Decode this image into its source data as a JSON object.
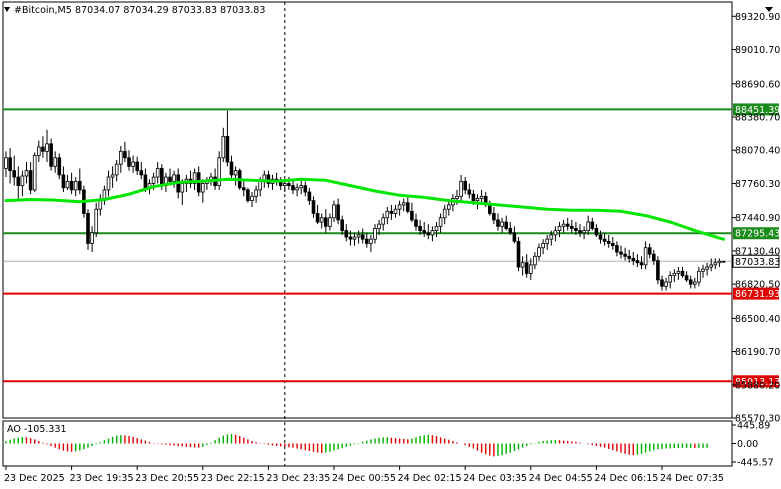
{
  "chart_data": {
    "type": "candlestick",
    "header": {
      "symbol_timeframe": "#Bitcoin,M5",
      "ohlc": "87034.07 87034.29 87033.83 87033.83"
    },
    "y_axis": {
      "min": 85570.3,
      "max": 89454.5,
      "tick_labels": [
        "89320.90",
        "89010.70",
        "88690.60",
        "88380.70",
        "88070.40",
        "87760.30",
        "87440.90",
        "87130.40",
        "86820.50",
        "86500.40",
        "86190.70",
        "85880.20",
        "85570.30"
      ],
      "tick_values": [
        89320.9,
        89010.7,
        88690.6,
        88380.7,
        88070.4,
        87760.3,
        87440.9,
        87130.4,
        86820.5,
        86500.4,
        86190.7,
        85880.2,
        85570.3
      ]
    },
    "x_axis": {
      "tick_labels": [
        "23 Dec 2025",
        "23 Dec 19:35",
        "23 Dec 20:55",
        "23 Dec 22:15",
        "23 Dec 23:35",
        "24 Dec 00:55",
        "24 Dec 02:15",
        "24 Dec 03:35",
        "24 Dec 04:55",
        "24 Dec 06:15",
        "24 Dec 07:35"
      ],
      "tick_bar_index": [
        0,
        16,
        32,
        48,
        64,
        80,
        96,
        112,
        128,
        144,
        160
      ]
    },
    "bar_count": 176,
    "session_divider_bar_index": 68,
    "ohlc": [
      [
        87900,
        88060,
        87820,
        88000
      ],
      [
        88000,
        88090,
        87760,
        87880
      ],
      [
        87880,
        88020,
        87740,
        87820
      ],
      [
        87820,
        87920,
        87620,
        87740
      ],
      [
        87740,
        87880,
        87640,
        87830
      ],
      [
        87830,
        87960,
        87760,
        87880
      ],
      [
        87880,
        87960,
        87660,
        87700
      ],
      [
        87700,
        88050,
        87680,
        88020
      ],
      [
        88020,
        88160,
        87960,
        88100
      ],
      [
        88100,
        88200,
        88000,
        88060
      ],
      [
        88060,
        88260,
        87960,
        88130
      ],
      [
        88130,
        88180,
        87880,
        87920
      ],
      [
        87920,
        88060,
        87860,
        88000
      ],
      [
        88000,
        88040,
        87800,
        87840
      ],
      [
        87840,
        87920,
        87680,
        87720
      ],
      [
        87720,
        87840,
        87700,
        87780
      ],
      [
        87780,
        87860,
        87660,
        87700
      ],
      [
        87700,
        87820,
        87640,
        87780
      ],
      [
        87780,
        87900,
        87660,
        87700
      ],
      [
        87700,
        87740,
        87440,
        87480
      ],
      [
        87480,
        87520,
        87140,
        87200
      ],
      [
        87200,
        87360,
        87120,
        87300
      ],
      [
        87300,
        87580,
        87260,
        87520
      ],
      [
        87520,
        87660,
        87460,
        87600
      ],
      [
        87600,
        87740,
        87560,
        87700
      ],
      [
        87700,
        87880,
        87640,
        87820
      ],
      [
        87820,
        87920,
        87720,
        87840
      ],
      [
        87840,
        87980,
        87780,
        87940
      ],
      [
        87940,
        88110,
        87860,
        88060
      ],
      [
        88060,
        88150,
        87960,
        88000
      ],
      [
        88000,
        88070,
        87880,
        87920
      ],
      [
        87920,
        88020,
        87860,
        87960
      ],
      [
        87960,
        88010,
        87840,
        87880
      ],
      [
        87880,
        87960,
        87800,
        87840
      ],
      [
        87840,
        87900,
        87680,
        87720
      ],
      [
        87720,
        87800,
        87660,
        87760
      ],
      [
        87760,
        87860,
        87700,
        87820
      ],
      [
        87820,
        87960,
        87760,
        87900
      ],
      [
        87900,
        87940,
        87700,
        87740
      ],
      [
        87740,
        87860,
        87680,
        87820
      ],
      [
        87820,
        87900,
        87740,
        87780
      ],
      [
        87780,
        87880,
        87720,
        87840
      ],
      [
        87840,
        87900,
        87620,
        87680
      ],
      [
        87680,
        87800,
        87560,
        87760
      ],
      [
        87760,
        87840,
        87680,
        87800
      ],
      [
        87800,
        87880,
        87720,
        87760
      ],
      [
        87760,
        87900,
        87700,
        87860
      ],
      [
        87860,
        87920,
        87640,
        87680
      ],
      [
        87680,
        87800,
        87580,
        87760
      ],
      [
        87760,
        87820,
        87700,
        87780
      ],
      [
        87780,
        87860,
        87740,
        87820
      ],
      [
        87820,
        87900,
        87700,
        87740
      ],
      [
        87740,
        88060,
        87700,
        88000
      ],
      [
        88000,
        88280,
        87960,
        88200
      ],
      [
        88200,
        88440,
        87920,
        87960
      ],
      [
        87960,
        88020,
        87800,
        87840
      ],
      [
        87840,
        87920,
        87740,
        87880
      ],
      [
        87880,
        87900,
        87700,
        87720
      ],
      [
        87720,
        87780,
        87640,
        87700
      ],
      [
        87700,
        87720,
        87580,
        87600
      ],
      [
        87600,
        87680,
        87540,
        87640
      ],
      [
        87640,
        87740,
        87580,
        87700
      ],
      [
        87700,
        87820,
        87640,
        87780
      ],
      [
        87780,
        87880,
        87720,
        87840
      ],
      [
        87840,
        87880,
        87720,
        87760
      ],
      [
        87760,
        87840,
        87700,
        87800
      ],
      [
        87800,
        87860,
        87740,
        87780
      ],
      [
        87780,
        87820,
        87700,
        87740
      ],
      [
        87740,
        87800,
        87680,
        87760
      ],
      [
        87760,
        87820,
        87700,
        87740
      ],
      [
        87740,
        87790,
        87660,
        87700
      ],
      [
        87700,
        87760,
        87640,
        87720
      ],
      [
        87720,
        87800,
        87660,
        87740
      ],
      [
        87740,
        87780,
        87640,
        87680
      ],
      [
        87680,
        87720,
        87560,
        87600
      ],
      [
        87600,
        87640,
        87440,
        87480
      ],
      [
        87480,
        87560,
        87380,
        87400
      ],
      [
        87400,
        87480,
        87340,
        87440
      ],
      [
        87440,
        87520,
        87300,
        87360
      ],
      [
        87360,
        87480,
        87320,
        87440
      ],
      [
        87440,
        87600,
        87400,
        87560
      ],
      [
        87560,
        87620,
        87380,
        87420
      ],
      [
        87420,
        87460,
        87280,
        87320
      ],
      [
        87320,
        87380,
        87220,
        87260
      ],
      [
        87260,
        87320,
        87180,
        87240
      ],
      [
        87240,
        87300,
        87180,
        87260
      ],
      [
        87260,
        87320,
        87200,
        87280
      ],
      [
        87280,
        87340,
        87200,
        87240
      ],
      [
        87240,
        87300,
        87160,
        87200
      ],
      [
        87200,
        87280,
        87120,
        87240
      ],
      [
        87240,
        87380,
        87200,
        87340
      ],
      [
        87340,
        87420,
        87280,
        87380
      ],
      [
        87380,
        87480,
        87320,
        87440
      ],
      [
        87440,
        87540,
        87380,
        87500
      ],
      [
        87500,
        87560,
        87420,
        87480
      ],
      [
        87480,
        87560,
        87440,
        87520
      ],
      [
        87520,
        87600,
        87460,
        87560
      ],
      [
        87560,
        87620,
        87500,
        87580
      ],
      [
        87580,
        87640,
        87480,
        87500
      ],
      [
        87500,
        87580,
        87400,
        87420
      ],
      [
        87420,
        87480,
        87320,
        87360
      ],
      [
        87360,
        87420,
        87280,
        87320
      ],
      [
        87320,
        87400,
        87260,
        87300
      ],
      [
        87300,
        87380,
        87240,
        87280
      ],
      [
        87280,
        87360,
        87220,
        87320
      ],
      [
        87320,
        87400,
        87260,
        87360
      ],
      [
        87360,
        87480,
        87300,
        87440
      ],
      [
        87440,
        87560,
        87380,
        87520
      ],
      [
        87520,
        87600,
        87460,
        87560
      ],
      [
        87560,
        87660,
        87500,
        87620
      ],
      [
        87620,
        87700,
        87560,
        87640
      ],
      [
        87640,
        87840,
        87600,
        87780
      ],
      [
        87780,
        87820,
        87660,
        87700
      ],
      [
        87700,
        87760,
        87620,
        87660
      ],
      [
        87660,
        87700,
        87560,
        87600
      ],
      [
        87600,
        87660,
        87520,
        87620
      ],
      [
        87620,
        87700,
        87560,
        87640
      ],
      [
        87640,
        87680,
        87540,
        87560
      ],
      [
        87560,
        87600,
        87460,
        87480
      ],
      [
        87480,
        87540,
        87380,
        87420
      ],
      [
        87420,
        87480,
        87320,
        87360
      ],
      [
        87360,
        87440,
        87300,
        87400
      ],
      [
        87400,
        87460,
        87320,
        87340
      ],
      [
        87340,
        87400,
        87280,
        87300
      ],
      [
        87300,
        87360,
        87200,
        87220
      ],
      [
        87220,
        87260,
        86940,
        86980
      ],
      [
        86980,
        87080,
        86900,
        87020
      ],
      [
        87020,
        87100,
        86880,
        86920
      ],
      [
        86920,
        87060,
        86860,
        87000
      ],
      [
        87000,
        87120,
        86960,
        87080
      ],
      [
        87080,
        87200,
        87040,
        87160
      ],
      [
        87160,
        87240,
        87100,
        87200
      ],
      [
        87200,
        87280,
        87140,
        87240
      ],
      [
        87240,
        87320,
        87180,
        87280
      ],
      [
        87280,
        87360,
        87220,
        87320
      ],
      [
        87320,
        87400,
        87260,
        87360
      ],
      [
        87360,
        87420,
        87300,
        87380
      ],
      [
        87380,
        87440,
        87320,
        87360
      ],
      [
        87360,
        87420,
        87300,
        87340
      ],
      [
        87340,
        87400,
        87280,
        87320
      ],
      [
        87320,
        87380,
        87260,
        87300
      ],
      [
        87300,
        87360,
        87240,
        87320
      ],
      [
        87320,
        87460,
        87280,
        87400
      ],
      [
        87400,
        87440,
        87320,
        87340
      ],
      [
        87340,
        87380,
        87260,
        87280
      ],
      [
        87280,
        87320,
        87200,
        87240
      ],
      [
        87240,
        87300,
        87180,
        87220
      ],
      [
        87220,
        87280,
        87160,
        87200
      ],
      [
        87200,
        87260,
        87140,
        87180
      ],
      [
        87180,
        87220,
        87080,
        87120
      ],
      [
        87120,
        87180,
        87060,
        87100
      ],
      [
        87100,
        87160,
        87040,
        87080
      ],
      [
        87080,
        87140,
        87020,
        87060
      ],
      [
        87060,
        87120,
        87000,
        87040
      ],
      [
        87040,
        87100,
        86980,
        87020
      ],
      [
        87020,
        87080,
        86960,
        87000
      ],
      [
        87000,
        87220,
        86960,
        87160
      ],
      [
        87160,
        87200,
        87060,
        87100
      ],
      [
        87100,
        87140,
        87000,
        87040
      ],
      [
        87040,
        87080,
        86820,
        86860
      ],
      [
        86860,
        86900,
        86760,
        86800
      ],
      [
        86800,
        86880,
        86760,
        86840
      ],
      [
        86840,
        86940,
        86780,
        86900
      ],
      [
        86900,
        86960,
        86840,
        86920
      ],
      [
        86920,
        86980,
        86860,
        86940
      ],
      [
        86940,
        86980,
        86880,
        86900
      ],
      [
        86900,
        86940,
        86840,
        86860
      ],
      [
        86860,
        86900,
        86780,
        86820
      ],
      [
        86820,
        86880,
        86780,
        86840
      ],
      [
        86840,
        86980,
        86800,
        86940
      ],
      [
        86940,
        87000,
        86880,
        86960
      ],
      [
        86960,
        87020,
        86900,
        86980
      ],
      [
        86980,
        87060,
        86940,
        87000
      ],
      [
        87000,
        87060,
        86960,
        87020
      ],
      [
        87020,
        87060,
        86980,
        87034
      ],
      [
        87034.07,
        87034.29,
        87033.83,
        87033.83
      ]
    ],
    "ma_line": {
      "color": "#00e600",
      "points": [
        [
          0,
          87600
        ],
        [
          6,
          87610
        ],
        [
          12,
          87605
        ],
        [
          18,
          87590
        ],
        [
          24,
          87610
        ],
        [
          30,
          87660
        ],
        [
          36,
          87730
        ],
        [
          42,
          87770
        ],
        [
          48,
          87780
        ],
        [
          54,
          87800
        ],
        [
          60,
          87790
        ],
        [
          66,
          87780
        ],
        [
          72,
          87800
        ],
        [
          78,
          87790
        ],
        [
          84,
          87740
        ],
        [
          90,
          87690
        ],
        [
          96,
          87650
        ],
        [
          102,
          87630
        ],
        [
          108,
          87600
        ],
        [
          114,
          87580
        ],
        [
          120,
          87560
        ],
        [
          126,
          87540
        ],
        [
          132,
          87520
        ],
        [
          138,
          87510
        ],
        [
          144,
          87510
        ],
        [
          150,
          87500
        ],
        [
          156,
          87460
        ],
        [
          162,
          87400
        ],
        [
          168,
          87320
        ],
        [
          174,
          87250
        ],
        [
          175,
          87240
        ]
      ]
    },
    "horizontal_lines": [
      {
        "price": 88451.39,
        "label": "88451.39",
        "color": "#1a8a1a"
      },
      {
        "price": 87295.43,
        "label": "87295.43",
        "color": "#1a8a1a"
      },
      {
        "price": 86731.93,
        "label": "86731.93",
        "color": "#e00000"
      },
      {
        "price": 85913.13,
        "label": "85913.13",
        "color": "#e00000"
      }
    ],
    "current_price": {
      "value": 87033.83,
      "label": "87033.83",
      "color": "#000000"
    },
    "ao_indicator": {
      "label": "AO -105.331",
      "tick_labels": [
        "445.89",
        "0.00",
        "-445.57"
      ],
      "max": 445.89,
      "min": -445.57,
      "values": [
        60,
        90,
        120,
        140,
        160,
        150,
        130,
        100,
        60,
        20,
        -20,
        -60,
        -100,
        -140,
        -170,
        -190,
        -200,
        -190,
        -170,
        -140,
        -100,
        -60,
        -20,
        30,
        80,
        120,
        160,
        190,
        200,
        195,
        180,
        160,
        130,
        100,
        70,
        40,
        10,
        -10,
        -20,
        -30,
        -40,
        -50,
        -60,
        -70,
        -80,
        -90,
        -95,
        -100,
        -80,
        -40,
        20,
        80,
        140,
        190,
        220,
        230,
        210,
        180,
        140,
        100,
        60,
        30,
        10,
        -10,
        -30,
        -50,
        -60,
        -70,
        -80,
        -90,
        -100,
        -120,
        -140,
        -160,
        -180,
        -200,
        -220,
        -230,
        -220,
        -200,
        -170,
        -140,
        -110,
        -80,
        -50,
        -20,
        10,
        40,
        70,
        100,
        120,
        140,
        150,
        150,
        140,
        130,
        120,
        110,
        100,
        120,
        150,
        180,
        200,
        210,
        200,
        180,
        150,
        120,
        90,
        60,
        30,
        0,
        -40,
        -80,
        -120,
        -170,
        -220,
        -260,
        -290,
        -310,
        -300,
        -280,
        -250,
        -220,
        -180,
        -140,
        -100,
        -60,
        -20,
        10,
        40,
        60,
        70,
        80,
        85,
        80,
        70,
        60,
        50,
        40,
        20,
        0,
        -20,
        -40,
        -60,
        -80,
        -100,
        -130,
        -160,
        -190,
        -220,
        -250,
        -270,
        -280,
        -270,
        -250,
        -220,
        -190,
        -160,
        -140,
        -130,
        -120,
        -115,
        -110,
        -108,
        -106,
        -105,
        -105,
        -105.331,
        -105.331,
        -105.331,
        -105.331
      ]
    }
  },
  "colors": {
    "bullish": "#ffffff",
    "bearish": "#000000",
    "ao_up": "#00b000",
    "ao_down": "#e00000",
    "frame": "#000000",
    "grid_line": "#c8c8c8"
  }
}
